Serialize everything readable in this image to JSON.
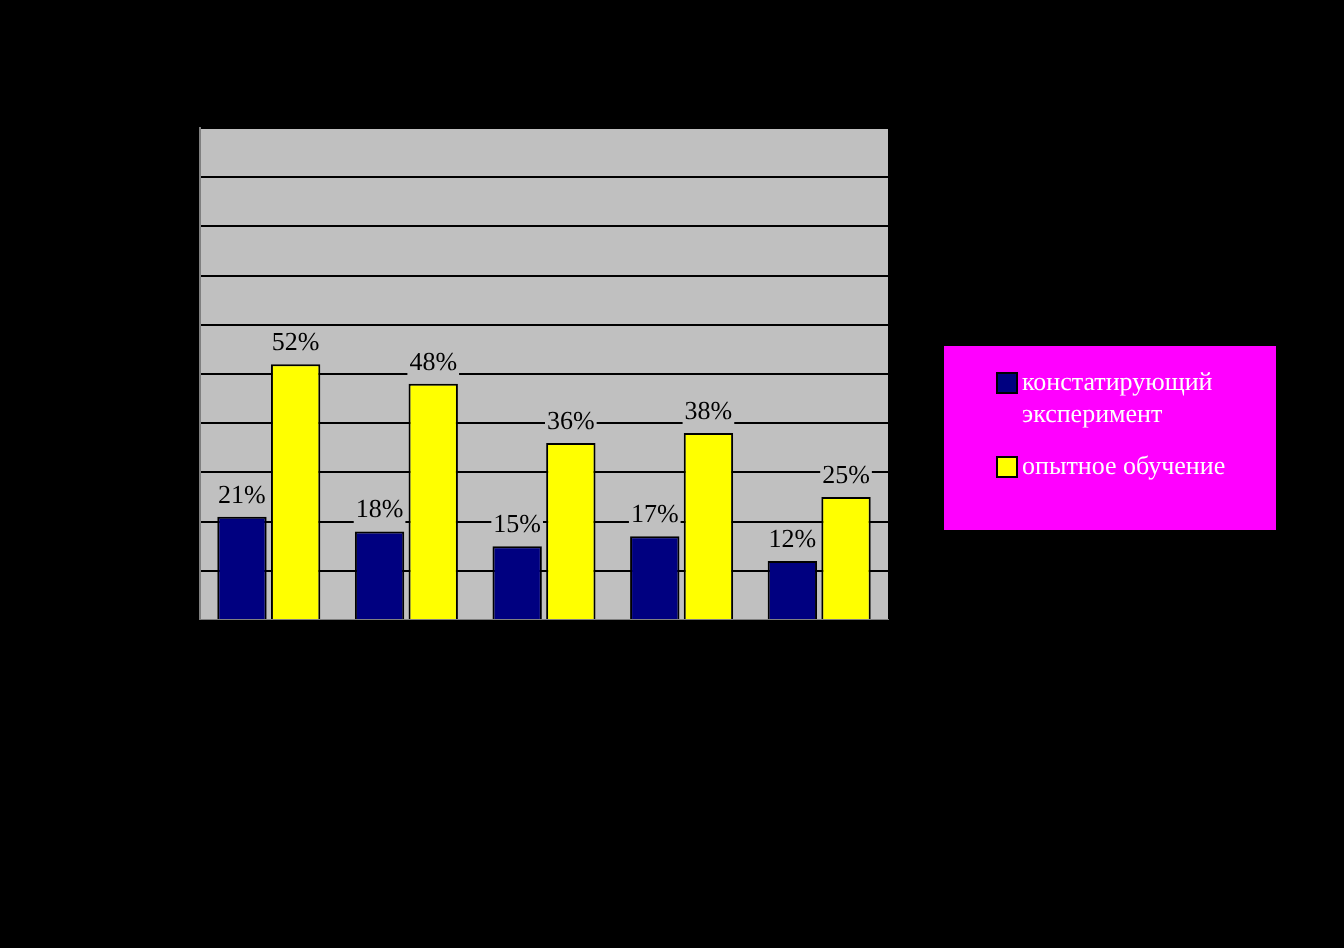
{
  "chart_data": {
    "type": "bar",
    "categories": [
      null,
      null,
      null,
      null,
      null
    ],
    "series": [
      {
        "name": "констатирующий эксперимент",
        "color": "#000080",
        "values": [
          21,
          18,
          15,
          17,
          12
        ],
        "value_labels": [
          "21%",
          "18%",
          "15%",
          "17%",
          "12%"
        ]
      },
      {
        "name": "опытное обучение",
        "color": "#ffff00",
        "values": [
          52,
          48,
          36,
          38,
          25
        ],
        "value_labels": [
          "52%",
          "48%",
          "36%",
          "38%",
          "25%"
        ]
      }
    ],
    "ylim": [
      0,
      100
    ],
    "grid": "y",
    "legend": "right",
    "tick_labels": false
  }
}
